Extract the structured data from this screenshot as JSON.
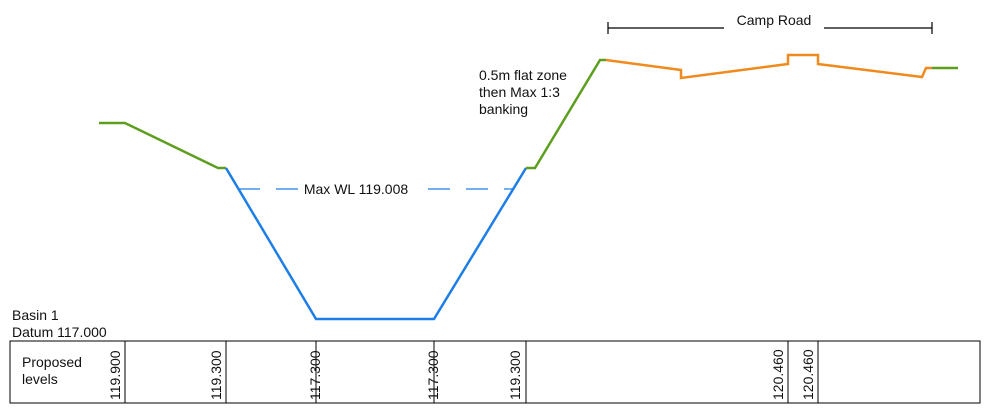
{
  "section": {
    "name": "Basin 1",
    "datum": "Datum 117.000",
    "row_label_line1": "Proposed",
    "row_label_line2": "levels"
  },
  "levels": [
    "119.900",
    "119.300",
    "117.300",
    "117.300",
    "119.300",
    "120.460",
    "120.460"
  ],
  "annotations": {
    "water_level": "Max WL 119.008",
    "road": "Camp Road",
    "bank_note_line1": "0.5m flat zone",
    "bank_note_line2": "then Max 1:3",
    "bank_note_line3": "banking"
  },
  "colors": {
    "banking": "#5d9e1f",
    "basin": "#1e7ee8",
    "road": "#f08a1c",
    "outline": "#000000"
  }
}
